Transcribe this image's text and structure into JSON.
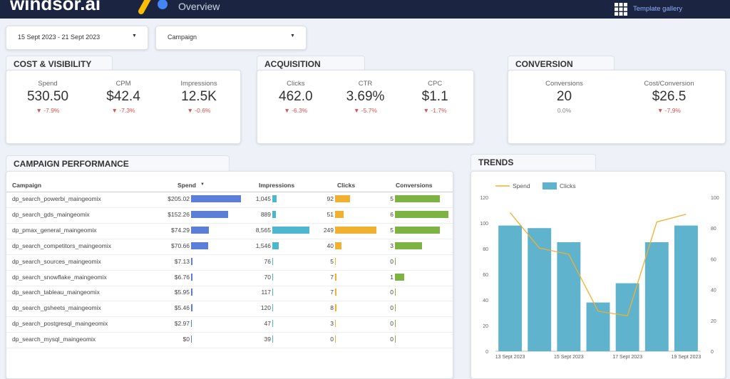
{
  "header": {
    "logo": "windsor.ai",
    "page": "Overview",
    "template_gallery": "Template gallery"
  },
  "filters": {
    "date_range": "15 Sept 2023 - 21 Sept 2023",
    "campaign": "Campaign"
  },
  "kpi_sections": [
    {
      "title": "COST & VISIBILITY",
      "metrics": [
        {
          "label": "Spend",
          "value": "530.50",
          "change": "-7.9%"
        },
        {
          "label": "CPM",
          "value": "$42.4",
          "change": "-7.3%"
        },
        {
          "label": "Impressions",
          "value": "12.5K",
          "change": "-0.6%"
        }
      ]
    },
    {
      "title": "ACQUISITION",
      "metrics": [
        {
          "label": "Clicks",
          "value": "462.0",
          "change": "-6.3%"
        },
        {
          "label": "CTR",
          "value": "3.69%",
          "change": "-5.7%"
        },
        {
          "label": "CPC",
          "value": "$1.1",
          "change": "-1.7%"
        }
      ]
    },
    {
      "title": "CONVERSION",
      "metrics": [
        {
          "label": "Conversions",
          "value": "20",
          "change": "0.0%"
        },
        {
          "label": "Cost/Conversion",
          "value": "$26.5",
          "change": "-7.9%"
        }
      ]
    }
  ],
  "campaign_performance": {
    "title": "CAMPAIGN PERFORMANCE",
    "columns": [
      "Campaign",
      "Spend",
      "Impressions",
      "Clicks",
      "Conversions"
    ],
    "bar_colors": [
      "#5b7fd6",
      "#4db7d0",
      "#f0b030",
      "#7cb342"
    ],
    "rows": [
      {
        "campaign": "dp_search_powerbi_maingeomix",
        "spend": {
          "value": 205.02,
          "label": "$205.02"
        },
        "impressions": {
          "value": 1045,
          "label": "1,045"
        },
        "clicks": 92,
        "conversions": 5
      },
      {
        "campaign": "dp_search_gds_maingeomix",
        "spend": {
          "value": 152.26,
          "label": "$152.26"
        },
        "impressions": 889,
        "clicks": 51,
        "conversions": 6
      },
      {
        "campaign": "dp_pmax_general_maingeomix",
        "spend": {
          "value": 74.29,
          "label": "$74.29"
        },
        "impressions": {
          "value": 8565,
          "label": "8,565"
        },
        "clicks": 249,
        "conversions": 5
      },
      {
        "campaign": "dp_search_competitors_maingeomix",
        "spend": {
          "value": 70.66,
          "label": "$70.66"
        },
        "impressions": {
          "value": 1546,
          "label": "1,546"
        },
        "clicks": 40,
        "conversions": 3
      },
      {
        "campaign": "dp_search_sources_maingeomix",
        "spend": {
          "value": 7.13,
          "label": "$7.13"
        },
        "impressions": 76,
        "clicks": 5,
        "conversions": 0
      },
      {
        "campaign": "dp_search_snowflake_maingeomix",
        "spend": {
          "value": 6.76,
          "label": "$6.76"
        },
        "impressions": 70,
        "clicks": 7,
        "conversions": 1
      },
      {
        "campaign": "dp_search_tableau_maingeomix",
        "spend": {
          "value": 5.95,
          "label": "$5.95"
        },
        "impressions": 117,
        "clicks": 7,
        "conversions": 0
      },
      {
        "campaign": "dp_search_gsheets_maingeomix",
        "spend": {
          "value": 5.46,
          "label": "$5.46"
        },
        "impressions": 120,
        "clicks": 8,
        "conversions": 0
      },
      {
        "campaign": "dp_search_postgresql_maingeomix",
        "spend": {
          "value": 2.97,
          "label": "$2.97"
        },
        "impressions": 47,
        "clicks": 3,
        "conversions": 0
      },
      {
        "campaign": "dp_search_mysql_maingeomix",
        "spend": {
          "value": 0,
          "label": "$0"
        },
        "impressions": 39,
        "clicks": 0,
        "conversions": 0
      }
    ]
  },
  "trends": {
    "type": "bar_line",
    "title": "TRENDS",
    "categories": [
      "13 Sept 2023",
      null,
      "15 Sept 2023",
      null,
      "17 Sept 2023",
      null,
      "19 Sept 2023"
    ],
    "series": [
      {
        "name": "Spend",
        "type": "line",
        "axis": "y2",
        "color": "#f0b030",
        "values": [
          90,
          67,
          63,
          26,
          23,
          84,
          89
        ]
      },
      {
        "name": "Clicks",
        "type": "bar",
        "color": "#5fb3cc",
        "values": [
          98,
          96,
          85,
          38,
          53,
          85,
          98
        ]
      }
    ],
    "ylim": [
      0,
      120
    ],
    "yticks": [
      0,
      20,
      40,
      60,
      80,
      100,
      120
    ],
    "y2lim": [
      0,
      100
    ],
    "y2ticks": [
      0,
      20,
      40,
      60,
      80,
      100
    ]
  }
}
